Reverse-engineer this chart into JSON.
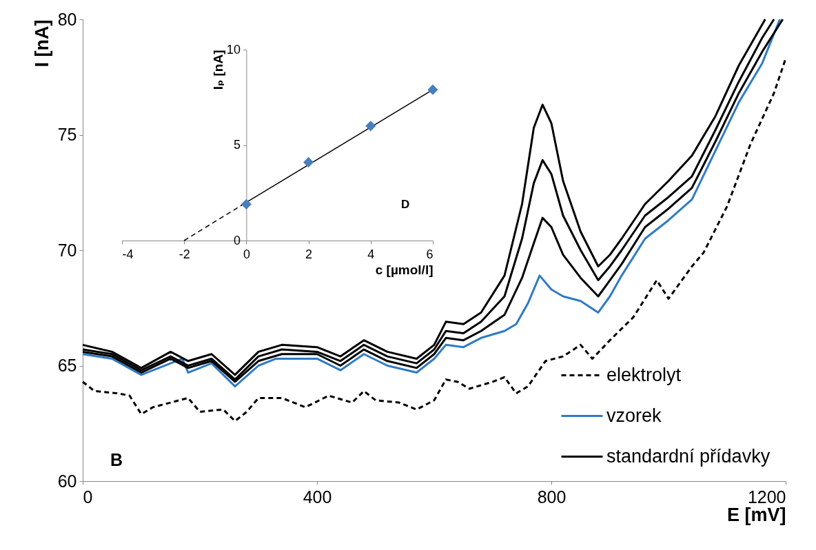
{
  "chart_data": [
    {
      "type": "line",
      "xlabel": "E [mV]",
      "ylabel": "I [nA]",
      "xlim": [
        0,
        1200
      ],
      "xticks": [
        0,
        400,
        800,
        {
          "value": 1200,
          "label": "1200"
        }
      ],
      "ylim": [
        60,
        80
      ],
      "yticks": [
        60,
        65,
        70,
        75,
        80
      ],
      "legend": "bottom right",
      "annotations": [
        "B"
      ],
      "series": [
        {
          "name": "elektrolyt",
          "color": "#000000",
          "line_style": "dashed",
          "x": [
            0,
            20,
            60,
            80,
            100,
            120,
            150,
            180,
            200,
            240,
            260,
            280,
            300,
            340,
            380,
            420,
            460,
            480,
            500,
            540,
            570,
            600,
            620,
            640,
            660,
            700,
            720,
            740,
            760,
            790,
            820,
            850,
            870,
            900,
            940,
            980,
            1000,
            1040,
            1060,
            1100,
            1140,
            1180,
            1200
          ],
          "values": [
            64.3,
            63.9,
            63.8,
            63.7,
            62.9,
            63.2,
            63.4,
            63.6,
            63.0,
            63.1,
            62.6,
            63.0,
            63.6,
            63.6,
            63.2,
            63.7,
            63.4,
            63.9,
            63.5,
            63.4,
            63.1,
            63.5,
            64.4,
            64.3,
            64.0,
            64.3,
            64.5,
            63.8,
            64.1,
            65.2,
            65.4,
            65.9,
            65.3,
            66.1,
            67.1,
            68.7,
            67.9,
            69.3,
            69.9,
            71.9,
            74.6,
            76.8,
            78.3
          ]
        },
        {
          "name": "vzorek",
          "color": "#2e7bc4",
          "line_style": "solid",
          "x": [
            0,
            50,
            100,
            150,
            170,
            180,
            220,
            260,
            300,
            330,
            400,
            440,
            480,
            520,
            570,
            600,
            620,
            650,
            680,
            720,
            740,
            760,
            780,
            800,
            820,
            850,
            880,
            900,
            920,
            960,
            1000,
            1040,
            1080,
            1120,
            1160,
            1190
          ],
          "values": [
            65.5,
            65.3,
            64.6,
            65.1,
            65.3,
            64.7,
            65.1,
            64.1,
            65.0,
            65.3,
            65.3,
            64.8,
            65.5,
            65.0,
            64.7,
            65.3,
            65.9,
            65.8,
            66.2,
            66.5,
            66.8,
            67.7,
            68.9,
            68.3,
            68.0,
            67.8,
            67.3,
            68.0,
            68.9,
            70.5,
            71.3,
            72.2,
            74.3,
            76.4,
            78.1,
            80.0
          ]
        },
        {
          "name": "standardní přídavky",
          "color": "#000000",
          "line_style": "solid",
          "x": [
            0,
            50,
            100,
            150,
            180,
            220,
            260,
            300,
            340,
            400,
            440,
            480,
            520,
            570,
            600,
            620,
            650,
            680,
            720,
            750,
            770,
            785,
            800,
            820,
            850,
            880,
            900,
            920,
            960,
            1000,
            1040,
            1080,
            1120,
            1160,
            1195
          ],
          "values": [
            65.6,
            65.4,
            64.7,
            65.3,
            64.9,
            65.2,
            64.3,
            65.2,
            65.5,
            65.5,
            65.0,
            65.7,
            65.2,
            64.9,
            65.5,
            66.2,
            66.1,
            66.5,
            67.2,
            68.8,
            70.3,
            71.4,
            71.0,
            69.8,
            68.8,
            68.0,
            68.7,
            69.4,
            71.0,
            71.8,
            72.7,
            74.7,
            76.8,
            78.6,
            80.0
          ]
        },
        {
          "color": "#000000",
          "line_style": "solid",
          "x": [
            0,
            50,
            100,
            150,
            180,
            220,
            260,
            300,
            340,
            400,
            440,
            480,
            520,
            570,
            600,
            620,
            650,
            680,
            720,
            750,
            770,
            785,
            800,
            820,
            850,
            880,
            900,
            920,
            960,
            1000,
            1040,
            1080,
            1120,
            1160,
            1180
          ],
          "values": [
            65.7,
            65.5,
            64.8,
            65.4,
            65.0,
            65.3,
            64.4,
            65.4,
            65.7,
            65.6,
            65.2,
            65.9,
            65.4,
            65.1,
            65.7,
            66.5,
            66.4,
            66.9,
            68.0,
            70.5,
            72.9,
            73.9,
            73.3,
            71.5,
            70.0,
            68.7,
            69.3,
            70.0,
            71.5,
            72.3,
            73.2,
            75.2,
            77.3,
            79.2,
            80.0
          ]
        },
        {
          "color": "#000000",
          "line_style": "solid",
          "x": [
            0,
            50,
            100,
            150,
            180,
            220,
            260,
            300,
            340,
            400,
            440,
            480,
            520,
            570,
            600,
            620,
            650,
            680,
            720,
            750,
            770,
            785,
            800,
            820,
            850,
            880,
            900,
            920,
            960,
            1000,
            1040,
            1080,
            1120,
            1165
          ],
          "values": [
            65.9,
            65.6,
            64.9,
            65.6,
            65.2,
            65.5,
            64.6,
            65.6,
            65.9,
            65.8,
            65.4,
            66.1,
            65.6,
            65.3,
            65.9,
            66.9,
            66.8,
            67.3,
            68.9,
            72.0,
            75.3,
            76.3,
            75.5,
            73.0,
            70.8,
            69.3,
            69.8,
            70.5,
            72.0,
            73.0,
            74.1,
            75.8,
            78.0,
            80.0
          ]
        }
      ]
    },
    {
      "type": "scatter",
      "xlabel": "c [µmol/l]",
      "ylabel": "Iₚ [nA]",
      "xlim": [
        -4,
        6
      ],
      "xticks": [
        -4,
        -2,
        0,
        2,
        4,
        6
      ],
      "ylim": [
        0,
        10
      ],
      "yticks": [
        0,
        5,
        10
      ],
      "annotations": [
        "D"
      ],
      "series": [
        {
          "color": "#4a7ebb",
          "marker": "diamond",
          "x": [
            0,
            2,
            4,
            6
          ],
          "values": [
            1.9,
            4.1,
            6.0,
            7.9
          ]
        },
        {
          "type": "line",
          "color": "#000000",
          "line_style": "dashed",
          "x": [
            -2,
            0
          ],
          "values": [
            0,
            2.0
          ]
        },
        {
          "type": "line",
          "color": "#000000",
          "line_style": "solid",
          "x": [
            0,
            6
          ],
          "values": [
            2.0,
            7.9
          ]
        }
      ]
    }
  ]
}
